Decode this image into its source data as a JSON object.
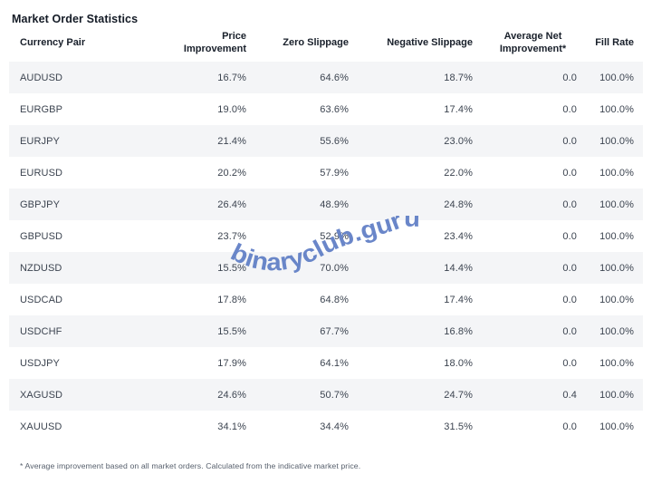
{
  "title": "Market Order Statistics",
  "watermark": {
    "text": "binaryclub.guru",
    "color": "#6482C7"
  },
  "footnote": "* Average improvement based on all market orders. Calculated from the indicative market price.",
  "colors": {
    "row_stripe": "#f4f5f7",
    "header_text": "#19202b",
    "cell_text": "#3c4450"
  },
  "table": {
    "columns": [
      "Currency Pair",
      "Price Improvement",
      "Zero Slippage",
      "Negative Slippage",
      "Average Net Improvement*",
      "Fill Rate"
    ],
    "rows": [
      [
        "AUDUSD",
        "16.7%",
        "64.6%",
        "18.7%",
        "0.0",
        "100.0%"
      ],
      [
        "EURGBP",
        "19.0%",
        "63.6%",
        "17.4%",
        "0.0",
        "100.0%"
      ],
      [
        "EURJPY",
        "21.4%",
        "55.6%",
        "23.0%",
        "0.0",
        "100.0%"
      ],
      [
        "EURUSD",
        "20.2%",
        "57.9%",
        "22.0%",
        "0.0",
        "100.0%"
      ],
      [
        "GBPJPY",
        "26.4%",
        "48.9%",
        "24.8%",
        "0.0",
        "100.0%"
      ],
      [
        "GBPUSD",
        "23.7%",
        "52.9%",
        "23.4%",
        "0.0",
        "100.0%"
      ],
      [
        "NZDUSD",
        "15.5%",
        "70.0%",
        "14.4%",
        "0.0",
        "100.0%"
      ],
      [
        "USDCAD",
        "17.8%",
        "64.8%",
        "17.4%",
        "0.0",
        "100.0%"
      ],
      [
        "USDCHF",
        "15.5%",
        "67.7%",
        "16.8%",
        "0.0",
        "100.0%"
      ],
      [
        "USDJPY",
        "17.9%",
        "64.1%",
        "18.0%",
        "0.0",
        "100.0%"
      ],
      [
        "XAGUSD",
        "24.6%",
        "50.7%",
        "24.7%",
        "0.4",
        "100.0%"
      ],
      [
        "XAUUSD",
        "34.1%",
        "34.4%",
        "31.5%",
        "0.0",
        "100.0%"
      ]
    ]
  }
}
